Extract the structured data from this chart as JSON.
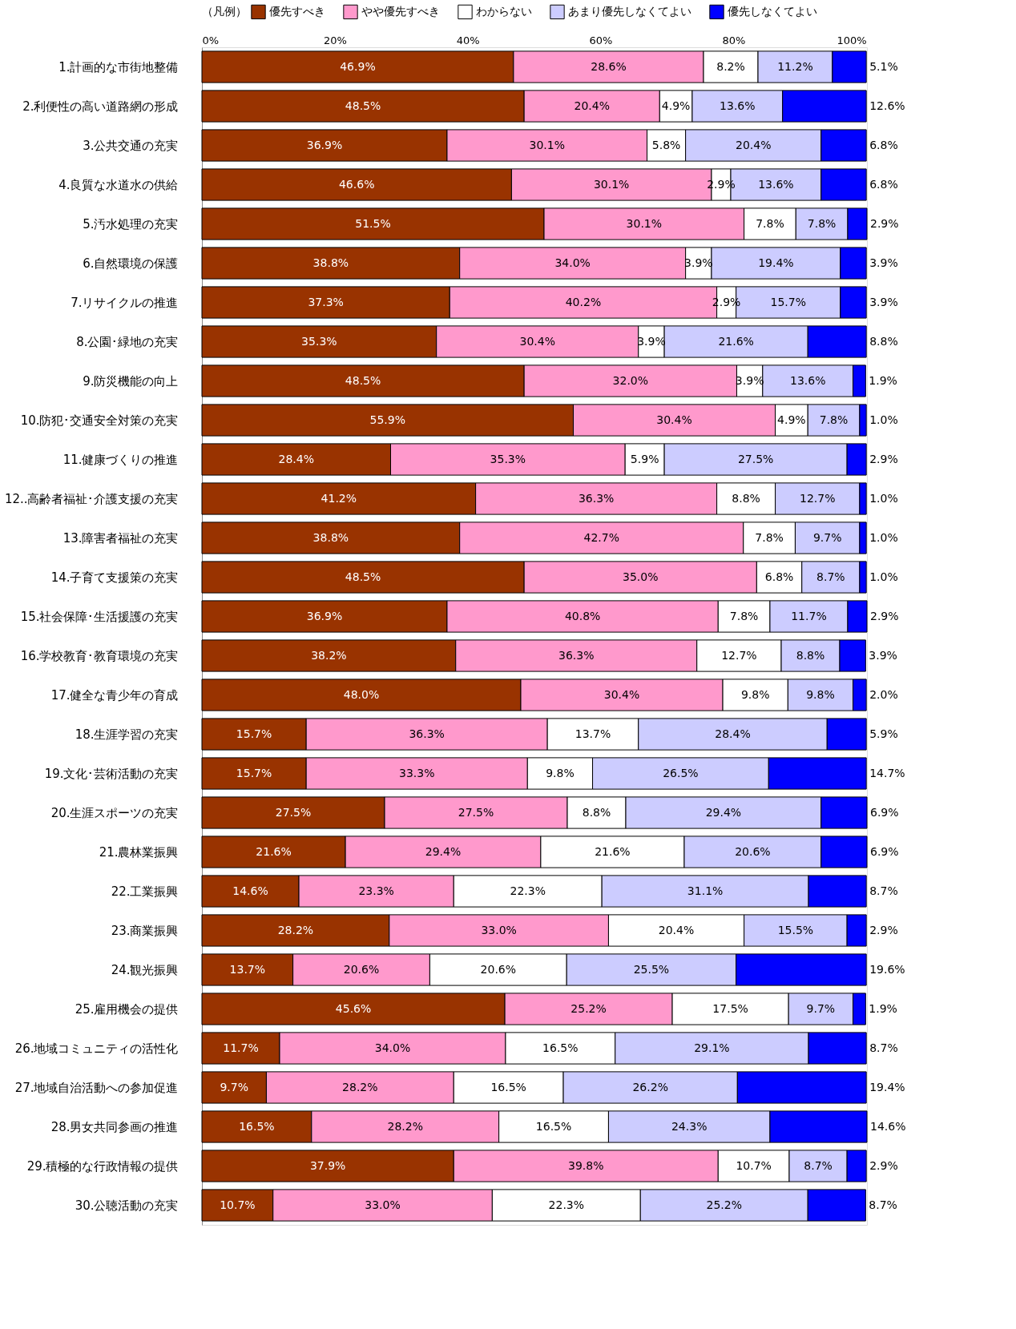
{
  "chart_data": {
    "type": "bar",
    "orientation": "horizontal",
    "stacked": true,
    "legend": "top",
    "legend_title": "（凡例）",
    "grid": false,
    "xlim": [
      0,
      100.1
    ],
    "xticks": [
      {
        "value": 0,
        "label": "0%"
      },
      {
        "value": 20,
        "label": "20%"
      },
      {
        "value": 40,
        "label": "40%"
      },
      {
        "value": 60,
        "label": "60%"
      },
      {
        "value": 80,
        "label": "80%"
      },
      {
        "value": 100,
        "label": "100%"
      }
    ],
    "categories": [
      "1.計画的な市街地整備",
      "2.利便性の高い道路網の形成",
      "3.公共交通の充実",
      "4.良質な水道水の供給",
      "5.汚水処理の充実",
      "6.自然環境の保護",
      "7.リサイクルの推進",
      "8.公園･緑地の充実",
      "9.防災機能の向上",
      "10.防犯･交通安全対策の充実",
      "11.健康づくりの推進",
      "12..高齢者福祉･介護支援の充実",
      "13.障害者福祉の充実",
      "14.子育て支援策の充実",
      "15.社会保障･生活援護の充実",
      "16.学校教育･教育環境の充実",
      "17.健全な青少年の育成",
      "18.生涯学習の充実",
      "19.文化･芸術活動の充実",
      "20.生涯スポーツの充実",
      "21.農林業振興",
      "22.工業振興",
      "23.商業振興",
      "24.観光振興",
      "25.雇用機会の提供",
      "26.地域コミュニティの活性化",
      "27.地域自治活動への参加促進",
      "28.男女共同参画の推進",
      "29.積極的な行政情報の提供",
      "30.公聴活動の充実"
    ],
    "series": [
      {
        "name": "優先すべき",
        "color": "#993300",
        "values": [
          46.9,
          48.5,
          36.9,
          46.6,
          51.5,
          38.8,
          37.3,
          35.3,
          48.5,
          55.9,
          28.4,
          41.2,
          38.8,
          48.5,
          36.9,
          38.2,
          48.0,
          15.7,
          15.7,
          27.5,
          21.6,
          14.6,
          28.2,
          13.7,
          45.6,
          11.7,
          9.7,
          16.5,
          37.9,
          10.7
        ],
        "value_labels": [
          "46.9%",
          "48.5%",
          "36.9%",
          "46.6%",
          "51.5%",
          "38.8%",
          "37.3%",
          "35.3%",
          "48.5%",
          "55.9%",
          "28.4%",
          "41.2%",
          "38.8%",
          "48.5%",
          "36.9%",
          "38.2%",
          "48.0%",
          "15.7%",
          "15.7%",
          "27.5%",
          "21.6%",
          "14.6%",
          "28.2%",
          "13.7%",
          "45.6%",
          "11.7%",
          "9.7%",
          "16.5%",
          "37.9%",
          "10.7%"
        ]
      },
      {
        "name": "やや優先すべき",
        "color": "#ff99cc",
        "values": [
          28.6,
          20.4,
          30.1,
          30.1,
          30.1,
          34.0,
          40.2,
          30.4,
          32.0,
          30.4,
          35.3,
          36.3,
          42.7,
          35.0,
          40.8,
          36.3,
          30.4,
          36.3,
          33.3,
          27.5,
          29.4,
          23.3,
          33.0,
          20.6,
          25.2,
          34.0,
          28.2,
          28.2,
          39.8,
          33.0
        ],
        "value_labels": [
          "28.6%",
          "20.4%",
          "30.1%",
          "30.1%",
          "30.1%",
          "34.0%",
          "40.2%",
          "30.4%",
          "32.0%",
          "30.4%",
          "35.3%",
          "36.3%",
          "42.7%",
          "35.0%",
          "40.8%",
          "36.3%",
          "30.4%",
          "36.3%",
          "33.3%",
          "27.5%",
          "29.4%",
          "23.3%",
          "33.0%",
          "20.6%",
          "25.2%",
          "34.0%",
          "28.2%",
          "28.2%",
          "39.8%",
          "33.0%"
        ]
      },
      {
        "name": "わからない",
        "color": "#ffffff",
        "values": [
          8.2,
          4.9,
          5.8,
          2.9,
          7.8,
          3.9,
          2.9,
          3.9,
          3.9,
          4.9,
          5.9,
          8.8,
          7.8,
          6.8,
          7.8,
          12.7,
          9.8,
          13.7,
          9.8,
          8.8,
          21.6,
          22.3,
          20.4,
          20.6,
          17.5,
          16.5,
          16.5,
          16.5,
          10.7,
          22.3
        ],
        "value_labels": [
          "8.2%",
          "4.9%",
          "5.8%",
          "2.9%",
          "7.8%",
          "3.9%",
          "2.9%",
          "3.9%",
          "3.9%",
          "4.9%",
          "5.9%",
          "8.8%",
          "7.8%",
          "6.8%",
          "7.8%",
          "12.7%",
          "9.8%",
          "13.7%",
          "9.8%",
          "8.8%",
          "21.6%",
          "22.3%",
          "20.4%",
          "20.6%",
          "17.5%",
          "16.5%",
          "16.5%",
          "16.5%",
          "10.7%",
          "22.3%"
        ]
      },
      {
        "name": "あまり優先しなくてよい",
        "color": "#ccccff",
        "values": [
          11.2,
          13.6,
          20.4,
          13.6,
          7.8,
          19.4,
          15.7,
          21.6,
          13.6,
          7.8,
          27.5,
          12.7,
          9.7,
          8.7,
          11.7,
          8.8,
          9.8,
          28.4,
          26.5,
          29.4,
          20.6,
          31.1,
          15.5,
          25.5,
          9.7,
          29.1,
          26.2,
          24.3,
          8.7,
          25.2
        ],
        "value_labels": [
          "11.2%",
          "13.6%",
          "20.4%",
          "13.6%",
          "7.8%",
          "19.4%",
          "15.7%",
          "21.6%",
          "13.6%",
          "7.8%",
          "27.5%",
          "12.7%",
          "9.7%",
          "8.7%",
          "11.7%",
          "8.8%",
          "9.8%",
          "28.4%",
          "26.5%",
          "29.4%",
          "20.6%",
          "31.1%",
          "15.5%",
          "25.5%",
          "9.7%",
          "29.1%",
          "26.2%",
          "24.3%",
          "8.7%",
          "25.2%"
        ]
      },
      {
        "name": "優先しなくてよい",
        "color": "#0000ff",
        "values": [
          5.1,
          12.6,
          6.8,
          6.8,
          2.9,
          3.9,
          3.9,
          8.8,
          1.9,
          1.0,
          2.9,
          1.0,
          1.0,
          1.0,
          2.9,
          3.9,
          2.0,
          5.9,
          14.7,
          6.9,
          6.9,
          8.7,
          2.9,
          19.6,
          1.9,
          8.7,
          19.4,
          14.6,
          2.9,
          8.7
        ],
        "value_labels": [
          "5.1%",
          "12.6%",
          "6.8%",
          "6.8%",
          "2.9%",
          "3.9%",
          "3.9%",
          "8.8%",
          "1.9%",
          "1.0%",
          "2.9%",
          "1.0%",
          "1.0%",
          "1.0%",
          "2.9%",
          "3.9%",
          "2.0%",
          "5.9%",
          "14.7%",
          "6.9%",
          "6.9%",
          "8.7%",
          "2.9%",
          "19.6%",
          "1.9%",
          "8.7%",
          "19.4%",
          "14.6%",
          "2.9%",
          "8.7%"
        ]
      }
    ]
  }
}
